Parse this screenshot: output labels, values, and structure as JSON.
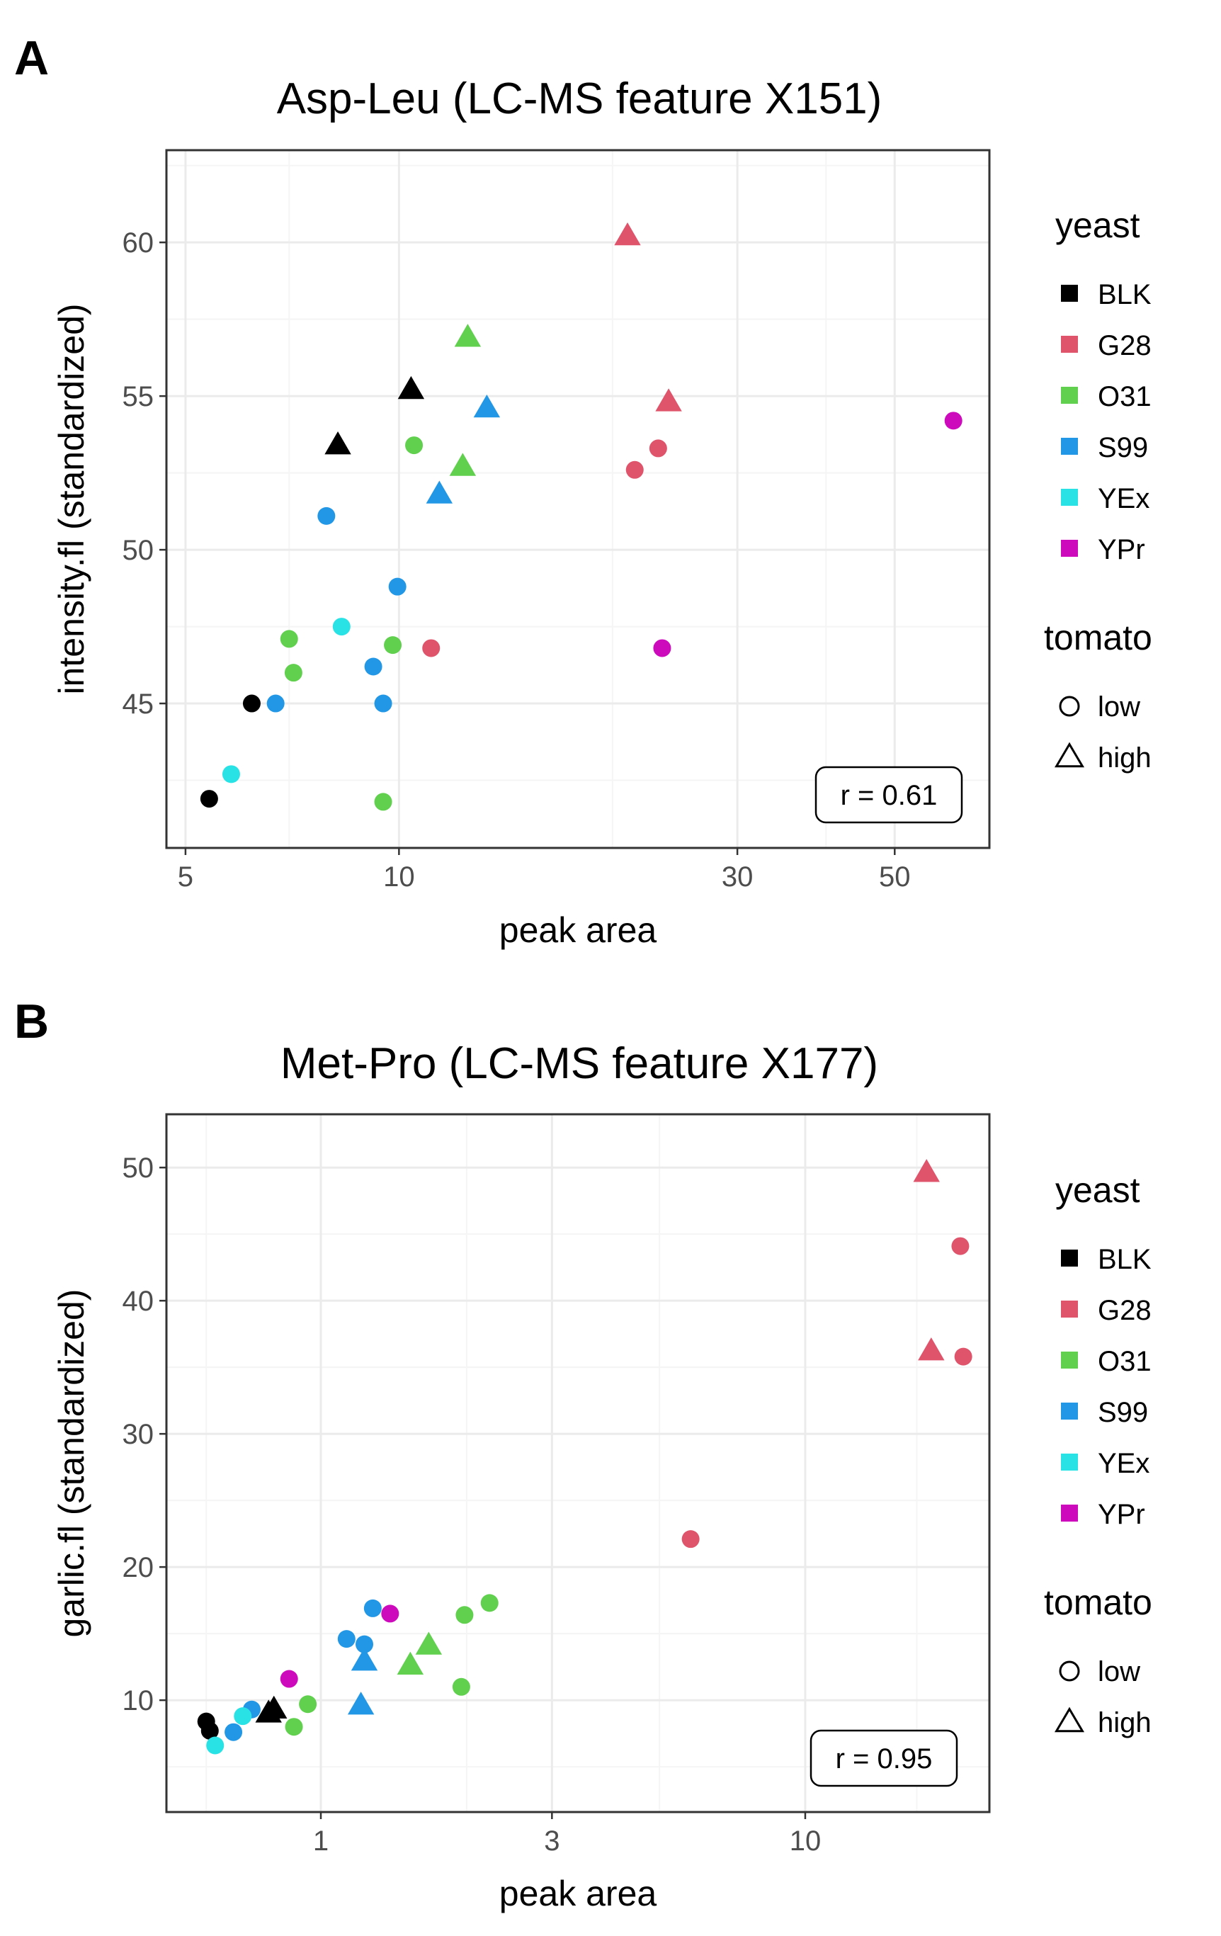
{
  "chart_data": [
    {
      "panel": "A",
      "type": "scatter",
      "title": "Asp-Leu (LC-MS feature X151)",
      "xlabel": "peak area",
      "ylabel": "intensity.fl (standardized)",
      "xscale": "log10",
      "xlim": [
        4.7,
        68
      ],
      "ylim": [
        40.3,
        63.0
      ],
      "xticks": [
        5,
        10,
        30,
        50
      ],
      "xtick_labels": [
        "5",
        "10",
        "30",
        "50"
      ],
      "x_minor_grid": [
        7,
        20,
        40
      ],
      "yticks": [
        45,
        50,
        55,
        60
      ],
      "ytick_labels": [
        "45",
        "50",
        "55",
        "60"
      ],
      "annotation": "r = 0.61",
      "points": [
        {
          "x": 5.4,
          "y": 41.9,
          "yeast": "BLK",
          "tomato": "low"
        },
        {
          "x": 6.2,
          "y": 45.0,
          "yeast": "BLK",
          "tomato": "low"
        },
        {
          "x": 8.2,
          "y": 53.4,
          "yeast": "BLK",
          "tomato": "high"
        },
        {
          "x": 10.4,
          "y": 55.2,
          "yeast": "BLK",
          "tomato": "high"
        },
        {
          "x": 11.1,
          "y": 46.8,
          "yeast": "G28",
          "tomato": "low"
        },
        {
          "x": 21.5,
          "y": 52.6,
          "yeast": "G28",
          "tomato": "low"
        },
        {
          "x": 23.2,
          "y": 53.3,
          "yeast": "G28",
          "tomato": "low"
        },
        {
          "x": 21.0,
          "y": 60.2,
          "yeast": "G28",
          "tomato": "high"
        },
        {
          "x": 24.0,
          "y": 54.8,
          "yeast": "G28",
          "tomato": "high"
        },
        {
          "x": 7.0,
          "y": 47.1,
          "yeast": "O31",
          "tomato": "low"
        },
        {
          "x": 7.1,
          "y": 46.0,
          "yeast": "O31",
          "tomato": "low"
        },
        {
          "x": 9.5,
          "y": 41.8,
          "yeast": "O31",
          "tomato": "low"
        },
        {
          "x": 9.8,
          "y": 46.9,
          "yeast": "O31",
          "tomato": "low"
        },
        {
          "x": 10.5,
          "y": 53.4,
          "yeast": "O31",
          "tomato": "low"
        },
        {
          "x": 12.3,
          "y": 52.7,
          "yeast": "O31",
          "tomato": "high"
        },
        {
          "x": 12.5,
          "y": 56.9,
          "yeast": "O31",
          "tomato": "high"
        },
        {
          "x": 6.7,
          "y": 45.0,
          "yeast": "S99",
          "tomato": "low"
        },
        {
          "x": 7.9,
          "y": 51.1,
          "yeast": "S99",
          "tomato": "low"
        },
        {
          "x": 9.2,
          "y": 46.2,
          "yeast": "S99",
          "tomato": "low"
        },
        {
          "x": 9.5,
          "y": 45.0,
          "yeast": "S99",
          "tomato": "low"
        },
        {
          "x": 9.95,
          "y": 48.8,
          "yeast": "S99",
          "tomato": "low"
        },
        {
          "x": 11.4,
          "y": 51.8,
          "yeast": "S99",
          "tomato": "high"
        },
        {
          "x": 13.3,
          "y": 54.6,
          "yeast": "S99",
          "tomato": "high"
        },
        {
          "x": 5.8,
          "y": 42.7,
          "yeast": "YEx",
          "tomato": "low"
        },
        {
          "x": 8.3,
          "y": 47.5,
          "yeast": "YEx",
          "tomato": "low"
        },
        {
          "x": 23.5,
          "y": 46.8,
          "yeast": "YPr",
          "tomato": "low"
        },
        {
          "x": 60.5,
          "y": 54.2,
          "yeast": "YPr",
          "tomato": "low"
        }
      ]
    },
    {
      "panel": "B",
      "type": "scatter",
      "title": "Met-Pro (LC-MS feature X177)",
      "xlabel": "peak area",
      "ylabel": "garlic.fl (standardized)",
      "xscale": "log10",
      "xlim": [
        0.48,
        24.0
      ],
      "ylim": [
        1.6,
        54.0
      ],
      "xticks": [
        1,
        3,
        10
      ],
      "xtick_labels": [
        "1",
        "3",
        "10"
      ],
      "x_minor_grid": [
        0.58,
        2,
        5,
        17
      ],
      "yticks": [
        10,
        20,
        30,
        40,
        50
      ],
      "ytick_labels": [
        "10",
        "20",
        "30",
        "40",
        "50"
      ],
      "annotation": "r = 0.95",
      "points": [
        {
          "x": 0.58,
          "y": 8.4,
          "yeast": "BLK",
          "tomato": "low"
        },
        {
          "x": 0.59,
          "y": 7.7,
          "yeast": "BLK",
          "tomato": "low"
        },
        {
          "x": 0.78,
          "y": 9.0,
          "yeast": "BLK",
          "tomato": "high"
        },
        {
          "x": 0.8,
          "y": 9.3,
          "yeast": "BLK",
          "tomato": "high"
        },
        {
          "x": 5.8,
          "y": 22.1,
          "yeast": "G28",
          "tomato": "low"
        },
        {
          "x": 20.9,
          "y": 44.1,
          "yeast": "G28",
          "tomato": "low"
        },
        {
          "x": 21.2,
          "y": 35.8,
          "yeast": "G28",
          "tomato": "low"
        },
        {
          "x": 17.8,
          "y": 49.6,
          "yeast": "G28",
          "tomato": "high"
        },
        {
          "x": 18.2,
          "y": 36.2,
          "yeast": "G28",
          "tomato": "high"
        },
        {
          "x": 0.88,
          "y": 8.0,
          "yeast": "O31",
          "tomato": "low"
        },
        {
          "x": 0.94,
          "y": 9.7,
          "yeast": "O31",
          "tomato": "low"
        },
        {
          "x": 1.95,
          "y": 11.0,
          "yeast": "O31",
          "tomato": "low"
        },
        {
          "x": 1.98,
          "y": 16.4,
          "yeast": "O31",
          "tomato": "low"
        },
        {
          "x": 2.23,
          "y": 17.3,
          "yeast": "O31",
          "tomato": "low"
        },
        {
          "x": 1.53,
          "y": 12.6,
          "yeast": "O31",
          "tomato": "high"
        },
        {
          "x": 1.67,
          "y": 14.1,
          "yeast": "O31",
          "tomato": "high"
        },
        {
          "x": 0.66,
          "y": 7.6,
          "yeast": "S99",
          "tomato": "low"
        },
        {
          "x": 0.72,
          "y": 9.3,
          "yeast": "S99",
          "tomato": "low"
        },
        {
          "x": 1.13,
          "y": 14.6,
          "yeast": "S99",
          "tomato": "low"
        },
        {
          "x": 1.23,
          "y": 14.2,
          "yeast": "S99",
          "tomato": "low"
        },
        {
          "x": 1.28,
          "y": 16.9,
          "yeast": "S99",
          "tomato": "low"
        },
        {
          "x": 1.21,
          "y": 9.6,
          "yeast": "S99",
          "tomato": "high"
        },
        {
          "x": 1.23,
          "y": 12.9,
          "yeast": "S99",
          "tomato": "high"
        },
        {
          "x": 0.605,
          "y": 6.6,
          "yeast": "YEx",
          "tomato": "low"
        },
        {
          "x": 0.69,
          "y": 8.8,
          "yeast": "YEx",
          "tomato": "low"
        },
        {
          "x": 0.86,
          "y": 11.6,
          "yeast": "YPr",
          "tomato": "low"
        },
        {
          "x": 1.39,
          "y": 16.5,
          "yeast": "YPr",
          "tomato": "low"
        }
      ]
    }
  ],
  "legend": {
    "yeast_title": "yeast",
    "yeast": [
      {
        "name": "BLK",
        "color": "#000000"
      },
      {
        "name": "G28",
        "color": "#df536b"
      },
      {
        "name": "O31",
        "color": "#61d04f"
      },
      {
        "name": "S99",
        "color": "#2297e6"
      },
      {
        "name": "YEx",
        "color": "#28e2e5"
      },
      {
        "name": "YPr",
        "color": "#cd0bbc"
      }
    ],
    "tomato_title": "tomato",
    "tomato": [
      {
        "name": "low",
        "shape": "circle-open"
      },
      {
        "name": "high",
        "shape": "triangle-open"
      }
    ]
  },
  "style": {
    "panel_border": "#333333",
    "grid_major": "#ebebeb",
    "grid_minor": "#f5f5f5"
  }
}
